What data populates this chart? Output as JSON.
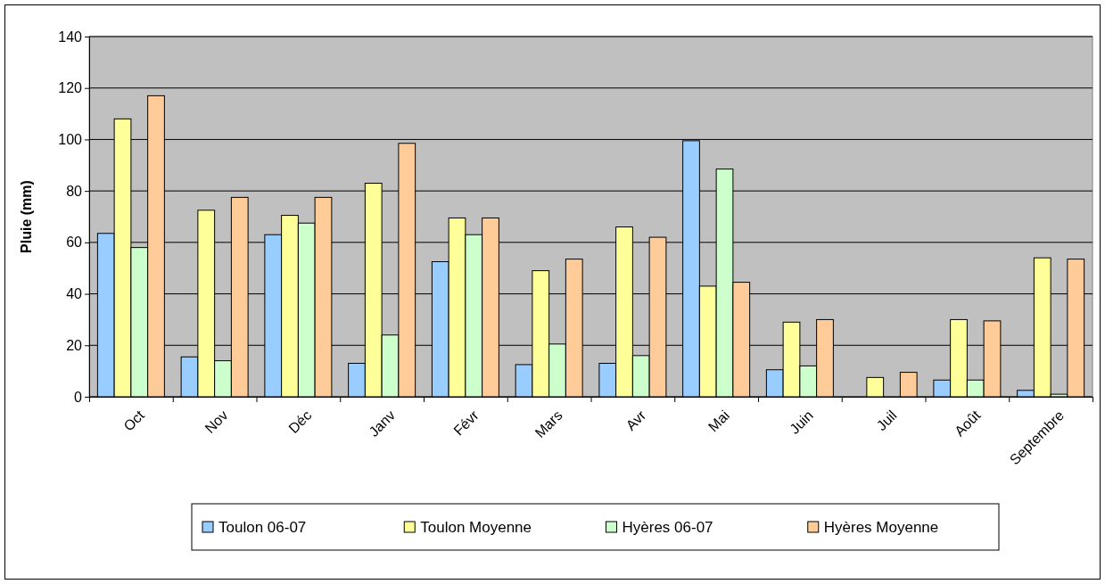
{
  "chart_data": {
    "type": "bar",
    "ylabel": "Pluie (mm)",
    "categories": [
      "Oct",
      "Nov",
      "Déc",
      "Janv",
      "Févr",
      "Mars",
      "Avr",
      "Mai",
      "Juin",
      "Juil",
      "Août",
      "Septembre"
    ],
    "series": [
      {
        "name": "Toulon 06-07",
        "color": "#99ccff",
        "values": [
          63.5,
          15.5,
          63,
          13,
          52.5,
          12.5,
          13,
          99.5,
          10.5,
          0,
          6.5,
          2.5
        ]
      },
      {
        "name": "Toulon Moyenne",
        "color": "#ffff99",
        "values": [
          108,
          72.5,
          70.5,
          83,
          69.5,
          49,
          66,
          43,
          29,
          7.5,
          30,
          54
        ]
      },
      {
        "name": "Hyères 06-07",
        "color": "#ccffcc",
        "values": [
          58,
          14,
          67.5,
          24,
          63,
          20.5,
          16,
          88.5,
          12,
          0,
          6.5,
          1
        ]
      },
      {
        "name": "Hyères Moyenne",
        "color": "#ffcc99",
        "values": [
          117,
          77.5,
          77.5,
          98.5,
          69.5,
          53.5,
          62,
          44.5,
          30,
          9.5,
          29.5,
          53.5
        ]
      }
    ],
    "ylim": [
      0,
      140
    ],
    "yticks": [
      0,
      20,
      40,
      60,
      80,
      100,
      120,
      140
    ],
    "grid": "y",
    "legend": "bottom"
  }
}
